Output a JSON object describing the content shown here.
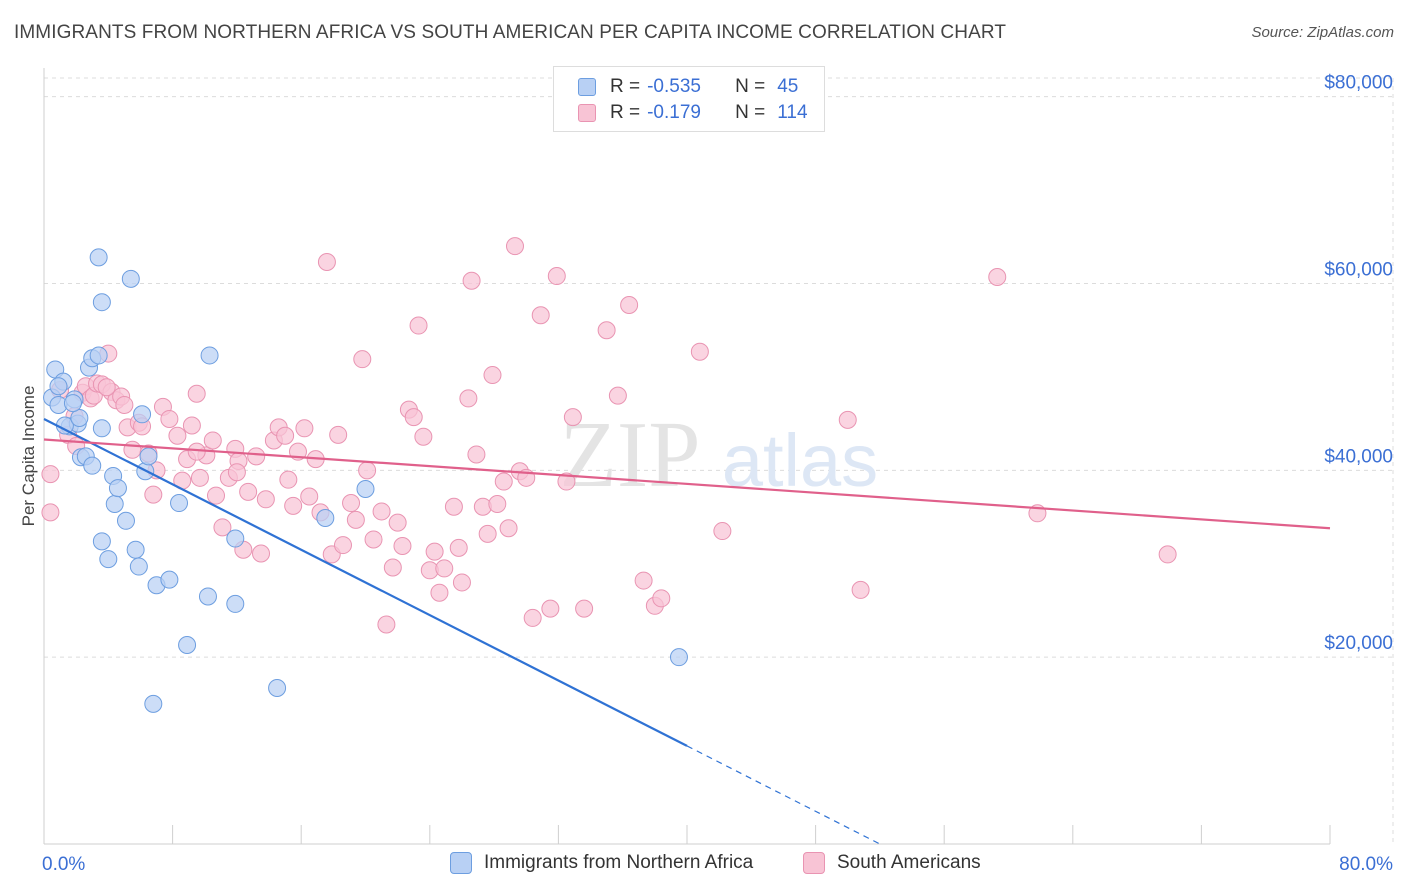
{
  "title": "IMMIGRANTS FROM NORTHERN AFRICA VS SOUTH AMERICAN PER CAPITA INCOME CORRELATION CHART",
  "source": "Source: ZipAtlas.com",
  "watermark": {
    "zip": "ZIP",
    "atlas": "atlas"
  },
  "legend": {
    "r_label": "R =",
    "n_label": "N =",
    "rows": [
      {
        "r": "-0.535",
        "n": "45"
      },
      {
        "r": "-0.179",
        "n": "114"
      }
    ]
  },
  "colors": {
    "series1_fill": "#b8d0f4",
    "series1_stroke": "#6d9ee0",
    "series1_line": "#2f72d4",
    "series2_fill": "#f8c4d5",
    "series2_stroke": "#e994b2",
    "series2_line": "#e0608b",
    "axis_label": "#3b6fd4",
    "grid": "#dcdcdc"
  },
  "chart_data": {
    "type": "scatter",
    "title": "IMMIGRANTS FROM NORTHERN AFRICA VS SOUTH AMERICAN PER CAPITA INCOME CORRELATION CHART",
    "xlabel": "",
    "ylabel": "Per Capita Income",
    "xlim": [
      0,
      80
    ],
    "ylim": [
      0,
      82000
    ],
    "x_tick_labels": [
      {
        "value": 0,
        "label": "0.0%"
      },
      {
        "value": 80,
        "label": "80.0%"
      }
    ],
    "y_ticks": [
      {
        "value": 20000,
        "label": "$20,000"
      },
      {
        "value": 40000,
        "label": "$40,000"
      },
      {
        "value": 60000,
        "label": "$60,000"
      },
      {
        "value": 80000,
        "label": "$80,000"
      }
    ],
    "grid": true,
    "legend_position": "top-center and bottom",
    "series": [
      {
        "name": "Immigrants from Northern Africa",
        "r": -0.535,
        "n": 45,
        "trend": {
          "x0": 0.0,
          "y0": 45500,
          "x1": 40.0,
          "y1": 10500,
          "dash_to_x": 52.0
        },
        "points": [
          [
            0.5,
            47800
          ],
          [
            0.7,
            50800
          ],
          [
            0.9,
            47000
          ],
          [
            1.2,
            49500
          ],
          [
            1.6,
            44700
          ],
          [
            1.9,
            47600
          ],
          [
            2.1,
            45000
          ],
          [
            2.3,
            41400
          ],
          [
            2.6,
            41500
          ],
          [
            2.8,
            51000
          ],
          [
            3.0,
            52000
          ],
          [
            3.4,
            52300
          ],
          [
            3.6,
            44500
          ],
          [
            4.3,
            39400
          ],
          [
            4.4,
            36400
          ],
          [
            4.6,
            38100
          ],
          [
            5.1,
            34600
          ],
          [
            5.7,
            31500
          ],
          [
            6.3,
            39900
          ],
          [
            6.5,
            41500
          ],
          [
            7.0,
            27700
          ],
          [
            7.8,
            28300
          ],
          [
            8.4,
            36500
          ],
          [
            8.9,
            21300
          ],
          [
            10.2,
            26500
          ],
          [
            10.3,
            52300
          ],
          [
            11.9,
            25700
          ],
          [
            11.9,
            32700
          ],
          [
            14.5,
            16700
          ],
          [
            17.5,
            34900
          ],
          [
            20.0,
            38000
          ],
          [
            39.5,
            20000
          ],
          [
            6.8,
            15000
          ],
          [
            3.4,
            62800
          ],
          [
            3.6,
            58000
          ],
          [
            5.4,
            60500
          ],
          [
            1.3,
            44800
          ],
          [
            2.2,
            45600
          ],
          [
            1.8,
            47200
          ],
          [
            4.0,
            30500
          ],
          [
            3.6,
            32400
          ],
          [
            5.9,
            29700
          ],
          [
            6.1,
            46000
          ],
          [
            3.0,
            40500
          ],
          [
            0.9,
            49000
          ]
        ]
      },
      {
        "name": "South Americans",
        "r": -0.179,
        "n": 114,
        "trend": {
          "x0": 0.0,
          "y0": 43300,
          "x1": 80.0,
          "y1": 33800
        },
        "points": [
          [
            0.4,
            39600
          ],
          [
            0.4,
            35500
          ],
          [
            1.5,
            43800
          ],
          [
            1.9,
            45800
          ],
          [
            2.4,
            48300
          ],
          [
            2.6,
            49000
          ],
          [
            2.9,
            47700
          ],
          [
            3.1,
            48000
          ],
          [
            3.3,
            49300
          ],
          [
            3.6,
            49200
          ],
          [
            4.0,
            52500
          ],
          [
            4.2,
            48400
          ],
          [
            4.5,
            47500
          ],
          [
            4.8,
            47900
          ],
          [
            5.2,
            44600
          ],
          [
            5.5,
            42200
          ],
          [
            5.9,
            45100
          ],
          [
            6.1,
            44700
          ],
          [
            6.5,
            41800
          ],
          [
            6.8,
            37400
          ],
          [
            7.0,
            40000
          ],
          [
            7.4,
            46800
          ],
          [
            7.8,
            45500
          ],
          [
            8.3,
            43700
          ],
          [
            8.6,
            38900
          ],
          [
            8.9,
            41200
          ],
          [
            9.2,
            44800
          ],
          [
            9.5,
            48200
          ],
          [
            9.7,
            39200
          ],
          [
            10.1,
            41600
          ],
          [
            10.5,
            43200
          ],
          [
            10.7,
            37300
          ],
          [
            11.1,
            33900
          ],
          [
            11.5,
            39200
          ],
          [
            11.9,
            42300
          ],
          [
            12.1,
            41000
          ],
          [
            12.4,
            31500
          ],
          [
            12.7,
            37700
          ],
          [
            13.2,
            41500
          ],
          [
            13.5,
            31100
          ],
          [
            13.8,
            36900
          ],
          [
            14.3,
            43200
          ],
          [
            14.6,
            44600
          ],
          [
            15.0,
            43700
          ],
          [
            15.2,
            39000
          ],
          [
            15.5,
            36200
          ],
          [
            15.8,
            42000
          ],
          [
            16.2,
            44500
          ],
          [
            16.5,
            37200
          ],
          [
            16.9,
            41200
          ],
          [
            17.2,
            35500
          ],
          [
            17.6,
            62300
          ],
          [
            17.9,
            31000
          ],
          [
            18.3,
            43800
          ],
          [
            18.6,
            32000
          ],
          [
            19.1,
            36500
          ],
          [
            19.4,
            34700
          ],
          [
            19.8,
            51900
          ],
          [
            20.1,
            40000
          ],
          [
            20.5,
            32600
          ],
          [
            21.0,
            35600
          ],
          [
            21.3,
            23500
          ],
          [
            21.7,
            29600
          ],
          [
            22.0,
            34400
          ],
          [
            22.3,
            31900
          ],
          [
            22.7,
            46500
          ],
          [
            23.0,
            45700
          ],
          [
            23.3,
            55500
          ],
          [
            23.6,
            43600
          ],
          [
            24.0,
            29300
          ],
          [
            24.3,
            31300
          ],
          [
            24.6,
            26900
          ],
          [
            24.9,
            29500
          ],
          [
            25.5,
            36100
          ],
          [
            25.8,
            31700
          ],
          [
            26.0,
            28000
          ],
          [
            26.4,
            47700
          ],
          [
            26.6,
            60300
          ],
          [
            26.9,
            41700
          ],
          [
            27.3,
            36100
          ],
          [
            27.6,
            33200
          ],
          [
            27.9,
            50200
          ],
          [
            28.2,
            36400
          ],
          [
            28.6,
            38800
          ],
          [
            28.9,
            33800
          ],
          [
            29.3,
            64000
          ],
          [
            29.6,
            39900
          ],
          [
            30.0,
            39200
          ],
          [
            30.4,
            24200
          ],
          [
            30.9,
            56600
          ],
          [
            31.5,
            25200
          ],
          [
            31.9,
            60800
          ],
          [
            32.5,
            38800
          ],
          [
            32.9,
            45700
          ],
          [
            33.6,
            25200
          ],
          [
            35.0,
            55000
          ],
          [
            35.7,
            48000
          ],
          [
            36.4,
            57700
          ],
          [
            37.3,
            28200
          ],
          [
            38.0,
            25500
          ],
          [
            38.4,
            26300
          ],
          [
            40.8,
            52700
          ],
          [
            42.2,
            33500
          ],
          [
            50.0,
            45400
          ],
          [
            50.8,
            27200
          ],
          [
            59.3,
            60700
          ],
          [
            61.8,
            35400
          ],
          [
            69.9,
            31000
          ],
          [
            1.0,
            48600
          ],
          [
            2.0,
            42600
          ],
          [
            3.9,
            48900
          ],
          [
            5.0,
            47000
          ],
          [
            9.5,
            42000
          ],
          [
            12.0,
            39800
          ]
        ]
      }
    ]
  }
}
